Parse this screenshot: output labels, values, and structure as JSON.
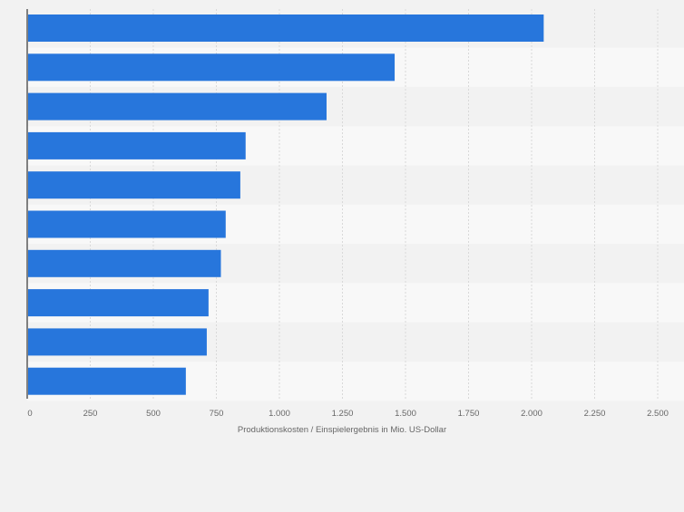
{
  "chart_data": {
    "type": "bar",
    "orientation": "horizontal",
    "title": "",
    "xlabel": "Produktionskosten / Einspielergebnis in Mio. US-Dollar",
    "ylabel": "",
    "xlim": [
      0,
      2500
    ],
    "ticks": [
      0,
      250,
      500,
      750,
      1000,
      1250,
      1500,
      1750,
      2000,
      2250,
      2500
    ],
    "tick_labels": [
      "0",
      "250",
      "500",
      "750",
      "1.000",
      "1.250",
      "1.500",
      "1.750",
      "2.000",
      "2.250",
      "2.500"
    ],
    "values": [
      2048,
      1457,
      1187,
      866,
      845,
      787,
      768,
      719,
      712,
      629
    ],
    "grid": true,
    "legend": "none"
  },
  "colors": {
    "bar": "#2776dc",
    "background": "#f2f2f2",
    "band_light": "#f8f8f8",
    "band_dark": "#f2f2f2",
    "grid": "#d9d9d9",
    "axis": "#333333",
    "tick_text": "#666666"
  }
}
